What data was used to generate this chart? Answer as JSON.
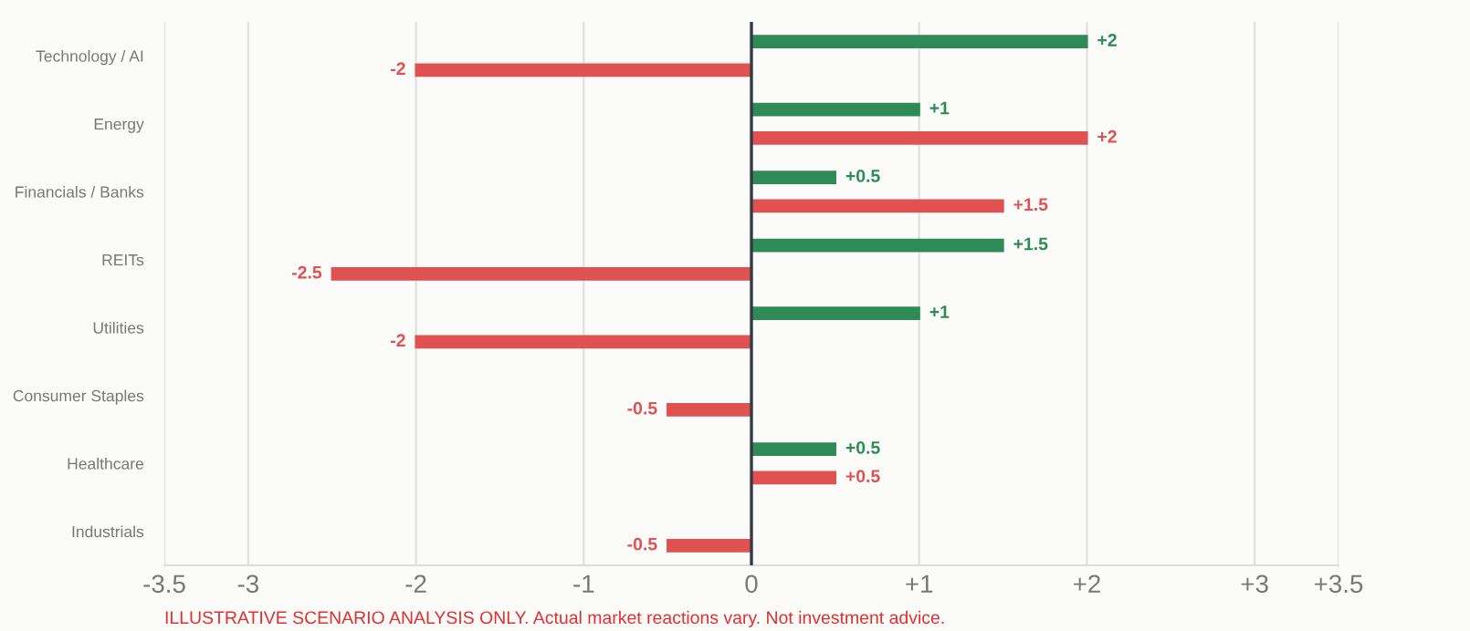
{
  "chart_data": {
    "type": "bar",
    "orientation": "horizontal",
    "categories": [
      "Technology / AI",
      "Energy",
      "Financials / Banks",
      "REITs",
      "Utilities",
      "Consumer Staples",
      "Healthcare",
      "Industrials"
    ],
    "series": [
      {
        "color": "#2e8b57",
        "values": [
          2,
          1,
          0.5,
          1.5,
          1,
          null,
          0.5,
          null
        ],
        "value_labels": [
          "+2",
          "+1",
          "+0.5",
          "+1.5",
          "+1",
          null,
          "+0.5",
          null
        ]
      },
      {
        "color": "#e05252",
        "values": [
          -2,
          2,
          1.5,
          -2.5,
          -2,
          -0.5,
          0.5,
          -0.5
        ],
        "value_labels": [
          "-2",
          "+2",
          "+1.5",
          "-2.5",
          "-2",
          "-0.5",
          "+0.5",
          "-0.5"
        ]
      }
    ],
    "xlim": [
      -3.5,
      3.5
    ],
    "xticks": [
      {
        "value": -3.5,
        "label": "-3.5"
      },
      {
        "value": -3,
        "label": "-3"
      },
      {
        "value": -2,
        "label": "-2"
      },
      {
        "value": -1,
        "label": "-1"
      },
      0,
      {
        "value": 1,
        "label": "+1"
      },
      {
        "value": 2,
        "label": "+2"
      },
      {
        "value": 3,
        "label": "+3"
      },
      {
        "value": 3.5,
        "label": "+3.5"
      }
    ],
    "grid": "x",
    "legend": false,
    "ref_lines": [
      {
        "axis": "x",
        "value": 0,
        "color": "#333a44"
      }
    ],
    "annotations": [
      "ILLUSTRATIVE SCENARIO ANALYSIS ONLY. Actual market reactions vary. Not investment advice."
    ]
  }
}
